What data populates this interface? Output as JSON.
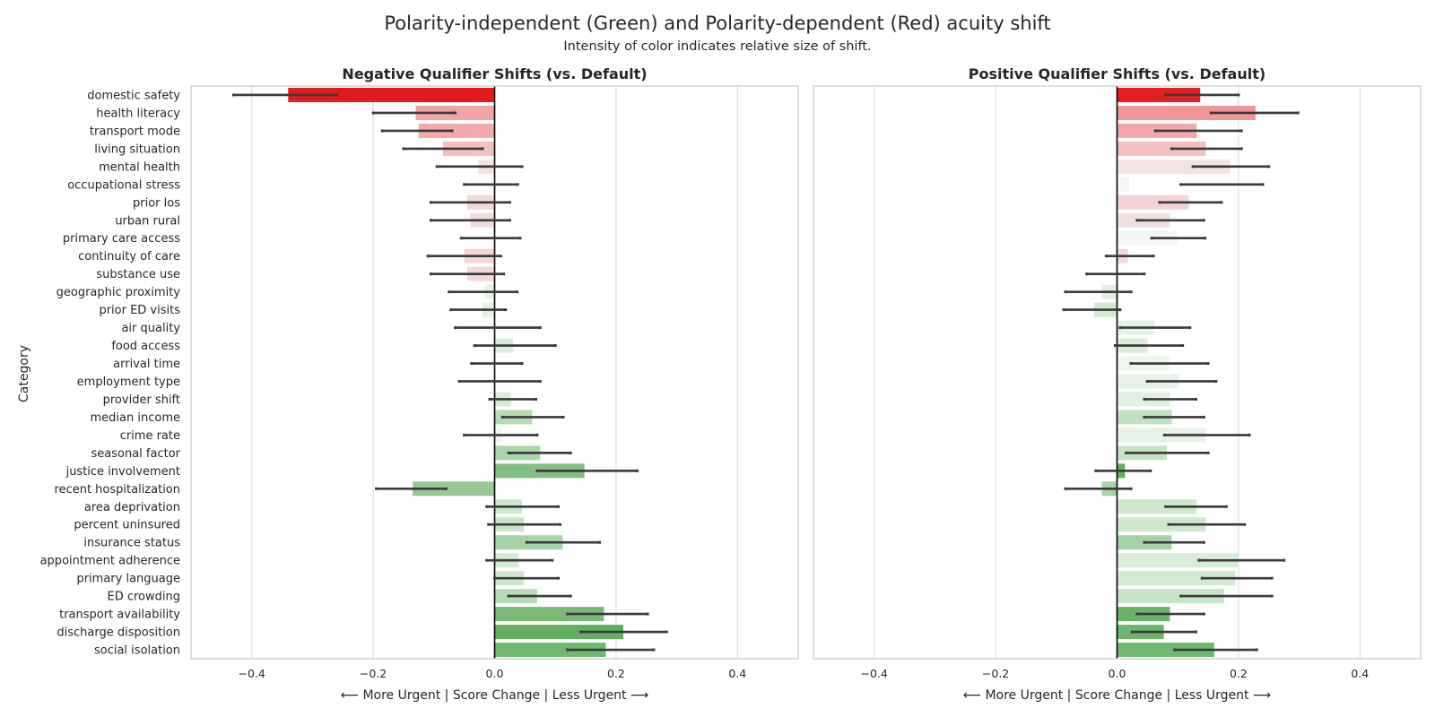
{
  "figure": {
    "title": "Polarity-independent (Green) and Polarity-dependent (Red) acuity shift",
    "subtitle": "Intensity of color indicates relative size of shift."
  },
  "chart_data": {
    "type": "bar",
    "orientation": "horizontal",
    "ylabel": "Category",
    "xlabel": "⟵ More Urgent | Score Change | Less Urgent ⟶",
    "xlim": [
      -0.5,
      0.5
    ],
    "xticks": [
      -0.4,
      -0.2,
      0.0,
      0.2,
      0.4
    ],
    "xtick_labels": [
      "−0.4",
      "−0.2",
      "0.0",
      "0.2",
      "0.4"
    ],
    "categories": [
      "domestic safety",
      "health literacy",
      "transport mode",
      "living situation",
      "mental health",
      "occupational stress",
      "prior los",
      "urban rural",
      "primary care access",
      "continuity of care",
      "substance use",
      "geographic proximity",
      "prior ED visits",
      "air quality",
      "food access",
      "arrival time",
      "employment type",
      "provider shift",
      "median income",
      "crime rate",
      "seasonal factor",
      "justice involvement",
      "recent hospitalization",
      "area deprivation",
      "percent uninsured",
      "insurance status",
      "appointment adherence",
      "primary language",
      "ED crowding",
      "transport availability",
      "discharge disposition",
      "social isolation"
    ],
    "panels": [
      {
        "title": "Negative Qualifier Shifts (vs. Default)",
        "values": [
          -0.34,
          -0.13,
          -0.125,
          -0.085,
          -0.027,
          0.0,
          -0.045,
          -0.04,
          0.0,
          -0.05,
          -0.045,
          -0.016,
          -0.02,
          0.0,
          0.03,
          0.0,
          0.0,
          0.027,
          0.062,
          0.012,
          0.075,
          0.148,
          -0.135,
          0.045,
          0.048,
          0.112,
          0.04,
          0.048,
          0.07,
          0.18,
          0.212,
          0.183
        ],
        "ci_low": [
          -0.43,
          -0.2,
          -0.185,
          -0.15,
          -0.095,
          -0.05,
          -0.105,
          -0.105,
          -0.055,
          -0.11,
          -0.105,
          -0.075,
          -0.072,
          -0.065,
          -0.033,
          -0.038,
          -0.058,
          -0.008,
          0.013,
          -0.05,
          0.023,
          0.07,
          -0.195,
          -0.013,
          -0.01,
          0.053,
          -0.013,
          0.0,
          0.023,
          0.12,
          0.142,
          0.12
        ],
        "ci_high": [
          -0.26,
          -0.065,
          -0.07,
          -0.02,
          0.045,
          0.038,
          0.025,
          0.025,
          0.042,
          0.01,
          0.015,
          0.037,
          0.018,
          0.075,
          0.1,
          0.045,
          0.075,
          0.068,
          0.113,
          0.07,
          0.125,
          0.235,
          -0.08,
          0.105,
          0.108,
          0.173,
          0.095,
          0.105,
          0.125,
          0.252,
          0.283,
          0.262
        ],
        "colors": [
          "#e31a1c",
          "#f0a3a5",
          "#f1a9ab",
          "#f4bfc1",
          "#f4e3e4",
          "#ffffff",
          "#f2d9da",
          "#f2dcdd",
          "#ffffff",
          "#f1d6d7",
          "#f1d9da",
          "#e6f2e6",
          "#e4f1e4",
          "#ffffff",
          "#dbeedb",
          "#ffffff",
          "#ffffff",
          "#d9edd9",
          "#b4dbb4",
          "#ecf6ec",
          "#a8d6a8",
          "#82c082",
          "#94c994",
          "#cde7cd",
          "#c9e5c9",
          "#a6d4a6",
          "#d2e9d2",
          "#cfe7cf",
          "#b6dcb6",
          "#76ba76",
          "#61b061",
          "#6fb76f"
        ]
      },
      {
        "title": "Positive Qualifier Shifts (vs. Default)",
        "values": [
          0.137,
          0.228,
          0.131,
          0.146,
          0.186,
          0.02,
          0.118,
          0.087,
          0.1,
          0.018,
          0.0,
          -0.025,
          -0.038,
          0.062,
          0.05,
          0.087,
          0.102,
          0.087,
          0.09,
          0.146,
          0.082,
          0.013,
          -0.025,
          0.131,
          0.146,
          0.09,
          0.2,
          0.195,
          0.176,
          0.087,
          0.077,
          0.16
        ],
        "ci_low": [
          0.08,
          0.155,
          0.063,
          0.09,
          0.125,
          0.105,
          0.07,
          0.033,
          0.057,
          -0.018,
          -0.05,
          -0.085,
          -0.088,
          0.005,
          -0.003,
          0.023,
          0.05,
          0.045,
          0.045,
          0.078,
          0.015,
          -0.035,
          -0.085,
          0.08,
          0.085,
          0.045,
          0.135,
          0.14,
          0.105,
          0.033,
          0.025,
          0.095
        ],
        "ci_high": [
          0.2,
          0.298,
          0.205,
          0.205,
          0.25,
          0.24,
          0.172,
          0.143,
          0.145,
          0.06,
          0.045,
          0.023,
          0.005,
          0.12,
          0.108,
          0.15,
          0.163,
          0.13,
          0.143,
          0.218,
          0.15,
          0.055,
          0.023,
          0.18,
          0.21,
          0.143,
          0.275,
          0.255,
          0.255,
          0.143,
          0.13,
          0.23
        ],
        "colors": [
          "#e41f21",
          "#ee9798",
          "#f0a9ab",
          "#f3bebf",
          "#f3e3e4",
          "#f5f5f5",
          "#f3d4d5",
          "#f2dfe0",
          "#f3f7f3",
          "#f4d8d9",
          "#ffffff",
          "#dff0df",
          "#d2e9d2",
          "#e4f2e4",
          "#d8ecd8",
          "#eff7ef",
          "#e6f3e6",
          "#e1f0e1",
          "#c1e2c1",
          "#e6f3e6",
          "#c3e3c3",
          "#5fb05f",
          "#a6d3a6",
          "#cde8cd",
          "#cde8cd",
          "#a3d3a3",
          "#d7ecd7",
          "#d2e9d2",
          "#c6e4c6",
          "#68b468",
          "#6bb66b",
          "#6fb86f"
        ]
      }
    ]
  }
}
